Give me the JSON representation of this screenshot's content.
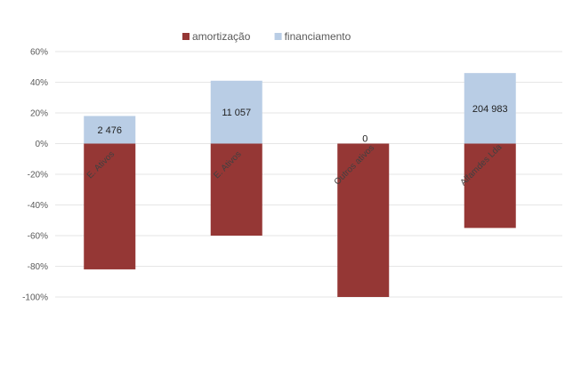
{
  "chart_data": {
    "type": "bar",
    "stacked": true,
    "categories": [
      "E. Ativos",
      "E. Ativos",
      "Outros ativos",
      "Alfamdes Lda"
    ],
    "series": [
      {
        "name": "amortização",
        "color": "#953735",
        "values": [
          -82,
          -60,
          -100,
          -55
        ]
      },
      {
        "name": "financiamento",
        "color": "#b9cde5",
        "values": [
          18,
          41,
          0,
          46
        ]
      }
    ],
    "data_labels": [
      "2 476",
      "11 057",
      "0",
      "204 983"
    ],
    "yticks": [
      "60%",
      "40%",
      "20%",
      "0%",
      "-20%",
      "-40%",
      "-60%",
      "-80%",
      "-100%"
    ],
    "ylim": [
      -100,
      60
    ],
    "grid": true,
    "legend": "top-center"
  }
}
